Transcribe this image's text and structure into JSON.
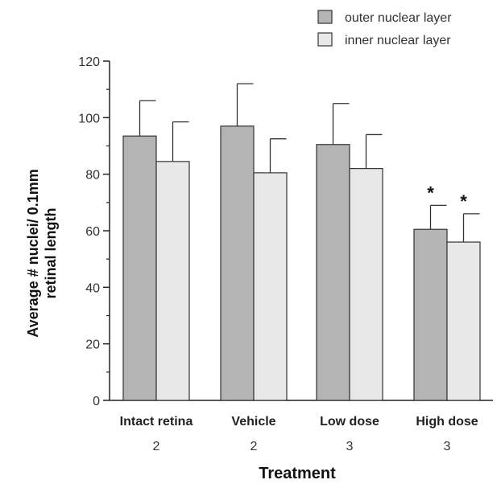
{
  "chart_data": {
    "type": "bar",
    "categories": [
      "Intact retina",
      "Vehicle",
      "Low dose",
      "High dose"
    ],
    "sub_labels": [
      "2",
      "2",
      "3",
      "3"
    ],
    "series": [
      {
        "name": "outer nuclear layer",
        "values": [
          93.5,
          97,
          90.5,
          60.5
        ],
        "errors": [
          12.5,
          15,
          14.5,
          8.5
        ],
        "significant": [
          false,
          false,
          false,
          true
        ],
        "color": "#b4b4b4"
      },
      {
        "name": "inner nuclear layer",
        "values": [
          84.5,
          80.5,
          82,
          56
        ],
        "errors": [
          14,
          12,
          12,
          10
        ],
        "significant": [
          false,
          false,
          false,
          true
        ],
        "color": "#e8e8e8"
      }
    ],
    "significance_marker": "*",
    "xlabel": "Treatment",
    "ylabel_lines": [
      "Average # nuclei/ 0.1mm",
      "retinal length"
    ],
    "ylim": [
      0,
      120
    ],
    "y_ticks": [
      0,
      20,
      40,
      60,
      80,
      100,
      120
    ],
    "grid": false,
    "legend_position": "top-right"
  }
}
